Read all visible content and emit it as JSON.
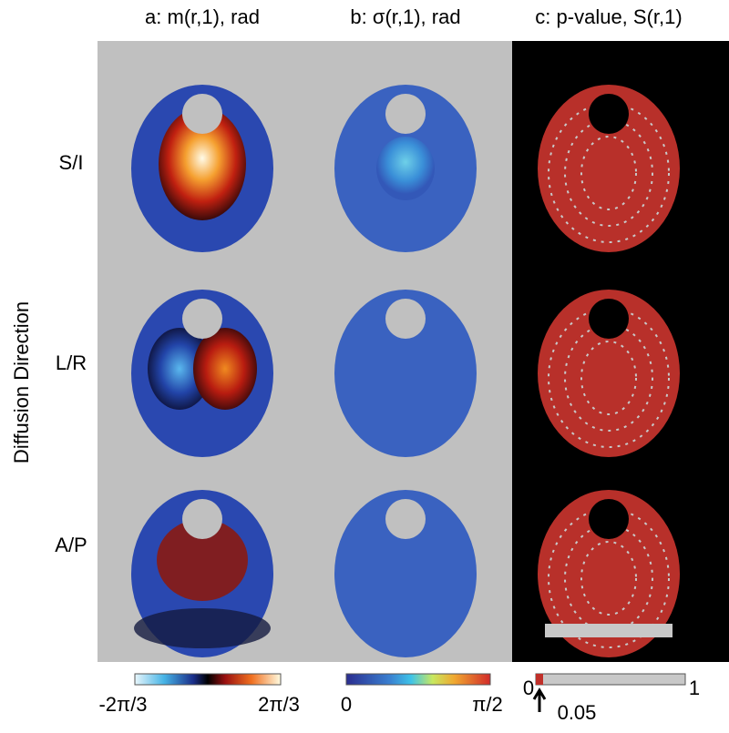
{
  "columns": [
    {
      "title": "a: m(r,1), rad"
    },
    {
      "title": "b: σ(r,1), rad"
    },
    {
      "title": "c: p-value, S(r,1)"
    }
  ],
  "rows": [
    {
      "label": "S/I"
    },
    {
      "label": "L/R"
    },
    {
      "label": "A/P"
    }
  ],
  "row_axis_label": "Diffusion Direction",
  "colorbars": [
    {
      "min_label": "-2π/3",
      "max_label": "2π/3"
    },
    {
      "min_label": "0",
      "max_label": "π/2"
    },
    {
      "min_label": "0",
      "max_label": "1",
      "threshold_label": "0.05"
    }
  ]
}
